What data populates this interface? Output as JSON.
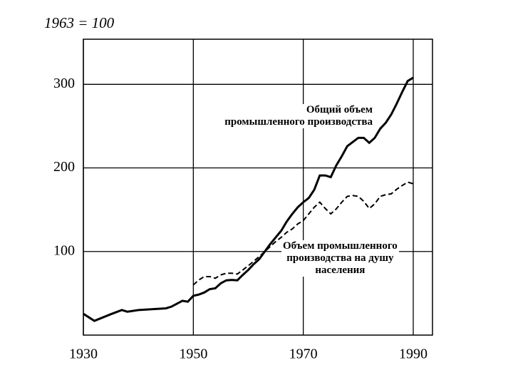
{
  "chart_data": {
    "type": "line",
    "title": "1963 = 100",
    "x": [
      1930,
      1932,
      1935,
      1937,
      1938,
      1940,
      1945,
      1946,
      1948,
      1949,
      1950,
      1951,
      1952,
      1953,
      1954,
      1955,
      1956,
      1957,
      1958,
      1959,
      1960,
      1961,
      1962,
      1963,
      1964,
      1965,
      1966,
      1967,
      1968,
      1969,
      1970,
      1971,
      1972,
      1973,
      1974,
      1975,
      1976,
      1977,
      1978,
      1979,
      1980,
      1981,
      1982,
      1983,
      1984,
      1985,
      1986,
      1987,
      1988,
      1989,
      1990
    ],
    "series": [
      {
        "name": "Общий объем\nпромышленного производства",
        "color": "#000000",
        "dash": false,
        "values": [
          25.5,
          17,
          25,
          30,
          28,
          30,
          32,
          34,
          41,
          40,
          47,
          48.5,
          51,
          55,
          56,
          62,
          65.5,
          66,
          65.5,
          72,
          78,
          85,
          91,
          100,
          109,
          117,
          125,
          136,
          145,
          153,
          159,
          164,
          174,
          191,
          191,
          189,
          203,
          214,
          226,
          231,
          236,
          236,
          230,
          236,
          247,
          254,
          264,
          277,
          291,
          304,
          308
        ]
      },
      {
        "name": "Объем промышленного\nпроизводства на душу\nнаселения",
        "color": "#000000",
        "dash": true,
        "values": [
          null,
          null,
          null,
          null,
          null,
          null,
          null,
          null,
          null,
          null,
          60,
          66,
          70,
          70,
          68,
          72,
          74,
          74,
          73,
          78,
          83,
          88.5,
          94,
          100,
          106,
          112,
          117,
          123,
          127,
          133,
          137,
          145,
          153,
          159,
          151.5,
          145,
          151,
          159,
          166,
          167,
          166,
          160,
          151.5,
          157,
          166,
          168,
          169,
          174.5,
          179,
          183,
          181
        ]
      }
    ],
    "xlim": [
      1930,
      1993.5
    ],
    "ylim": [
      0,
      354
    ],
    "xticks": [
      1930,
      1950,
      1970,
      1990
    ],
    "yticks": [
      100,
      200,
      300
    ],
    "grid": true
  }
}
